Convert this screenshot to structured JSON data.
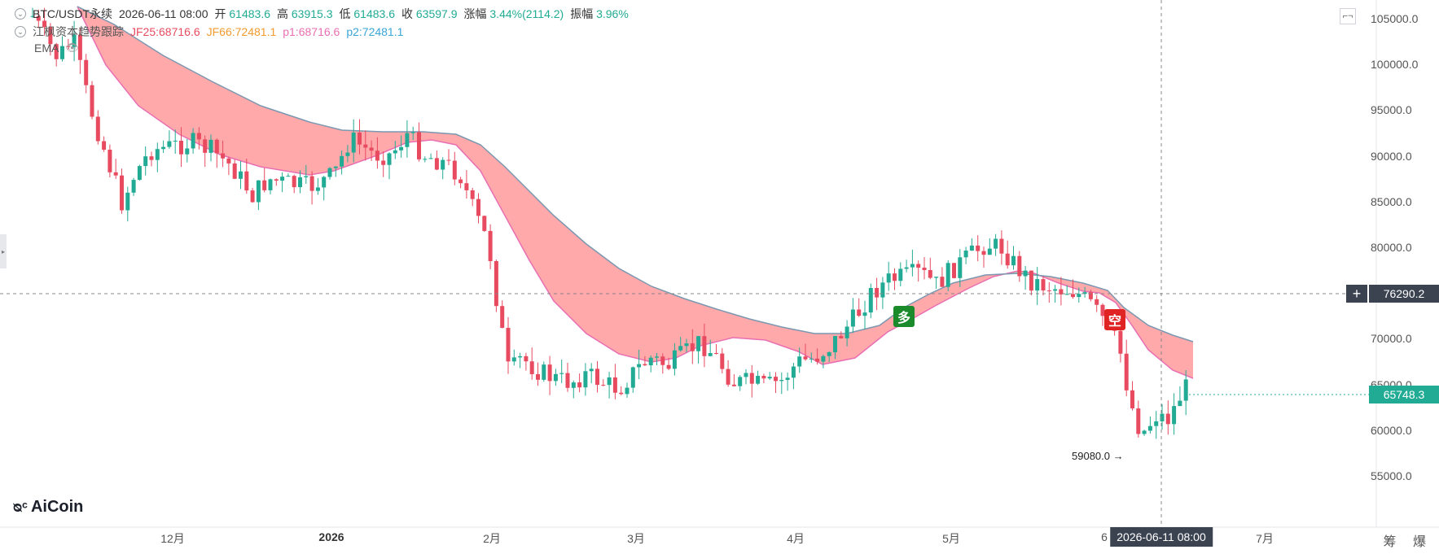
{
  "header": {
    "symbol": "BTC/USDT永续",
    "datetime": "2026-06-11 08:00",
    "open_label": "开",
    "open": "61483.6",
    "high_label": "高",
    "high": "63915.3",
    "low_label": "低",
    "low": "61483.6",
    "close_label": "收",
    "close": "63597.9",
    "change_label": "涨幅",
    "change": "3.44%(2114.2)",
    "amp_label": "振幅",
    "amp": "3.96%"
  },
  "indicator": {
    "name": "江枫资本趋势跟踪",
    "jf25": "JF25:68716.6",
    "jf66": "JF66:72481.1",
    "p1": "p1:68716.6",
    "p2": "p2:72481.1",
    "ema_label": "EMA"
  },
  "price_axis": [
    "105000.0",
    "100000.0",
    "95000.0",
    "90000.0",
    "85000.0",
    "80000.0",
    "75000.0",
    "70000.0",
    "65000.0",
    "60000.0",
    "55000.0"
  ],
  "time_axis": [
    "12月",
    "2026",
    "2月",
    "3月",
    "4月",
    "5月",
    "6",
    "7月"
  ],
  "crosshair": {
    "price": "76290.2",
    "time": "2026-06-11 08:00"
  },
  "last_price": "65748.3",
  "low_marker": "59080.0",
  "signals": {
    "long": "多",
    "short": "空"
  },
  "footer_right": "筹 爆",
  "brand": "AiCoin",
  "colors": {
    "up": "#22ab94",
    "down": "#e84a5f",
    "band_bear": "#ffa4a6",
    "band_bull": "#a5e3a6",
    "line_fast": "#e96fb2",
    "line_slow": "#7b98b0",
    "axis_bg": "#3b4351",
    "last_price_bg": "#22ab94"
  }
}
